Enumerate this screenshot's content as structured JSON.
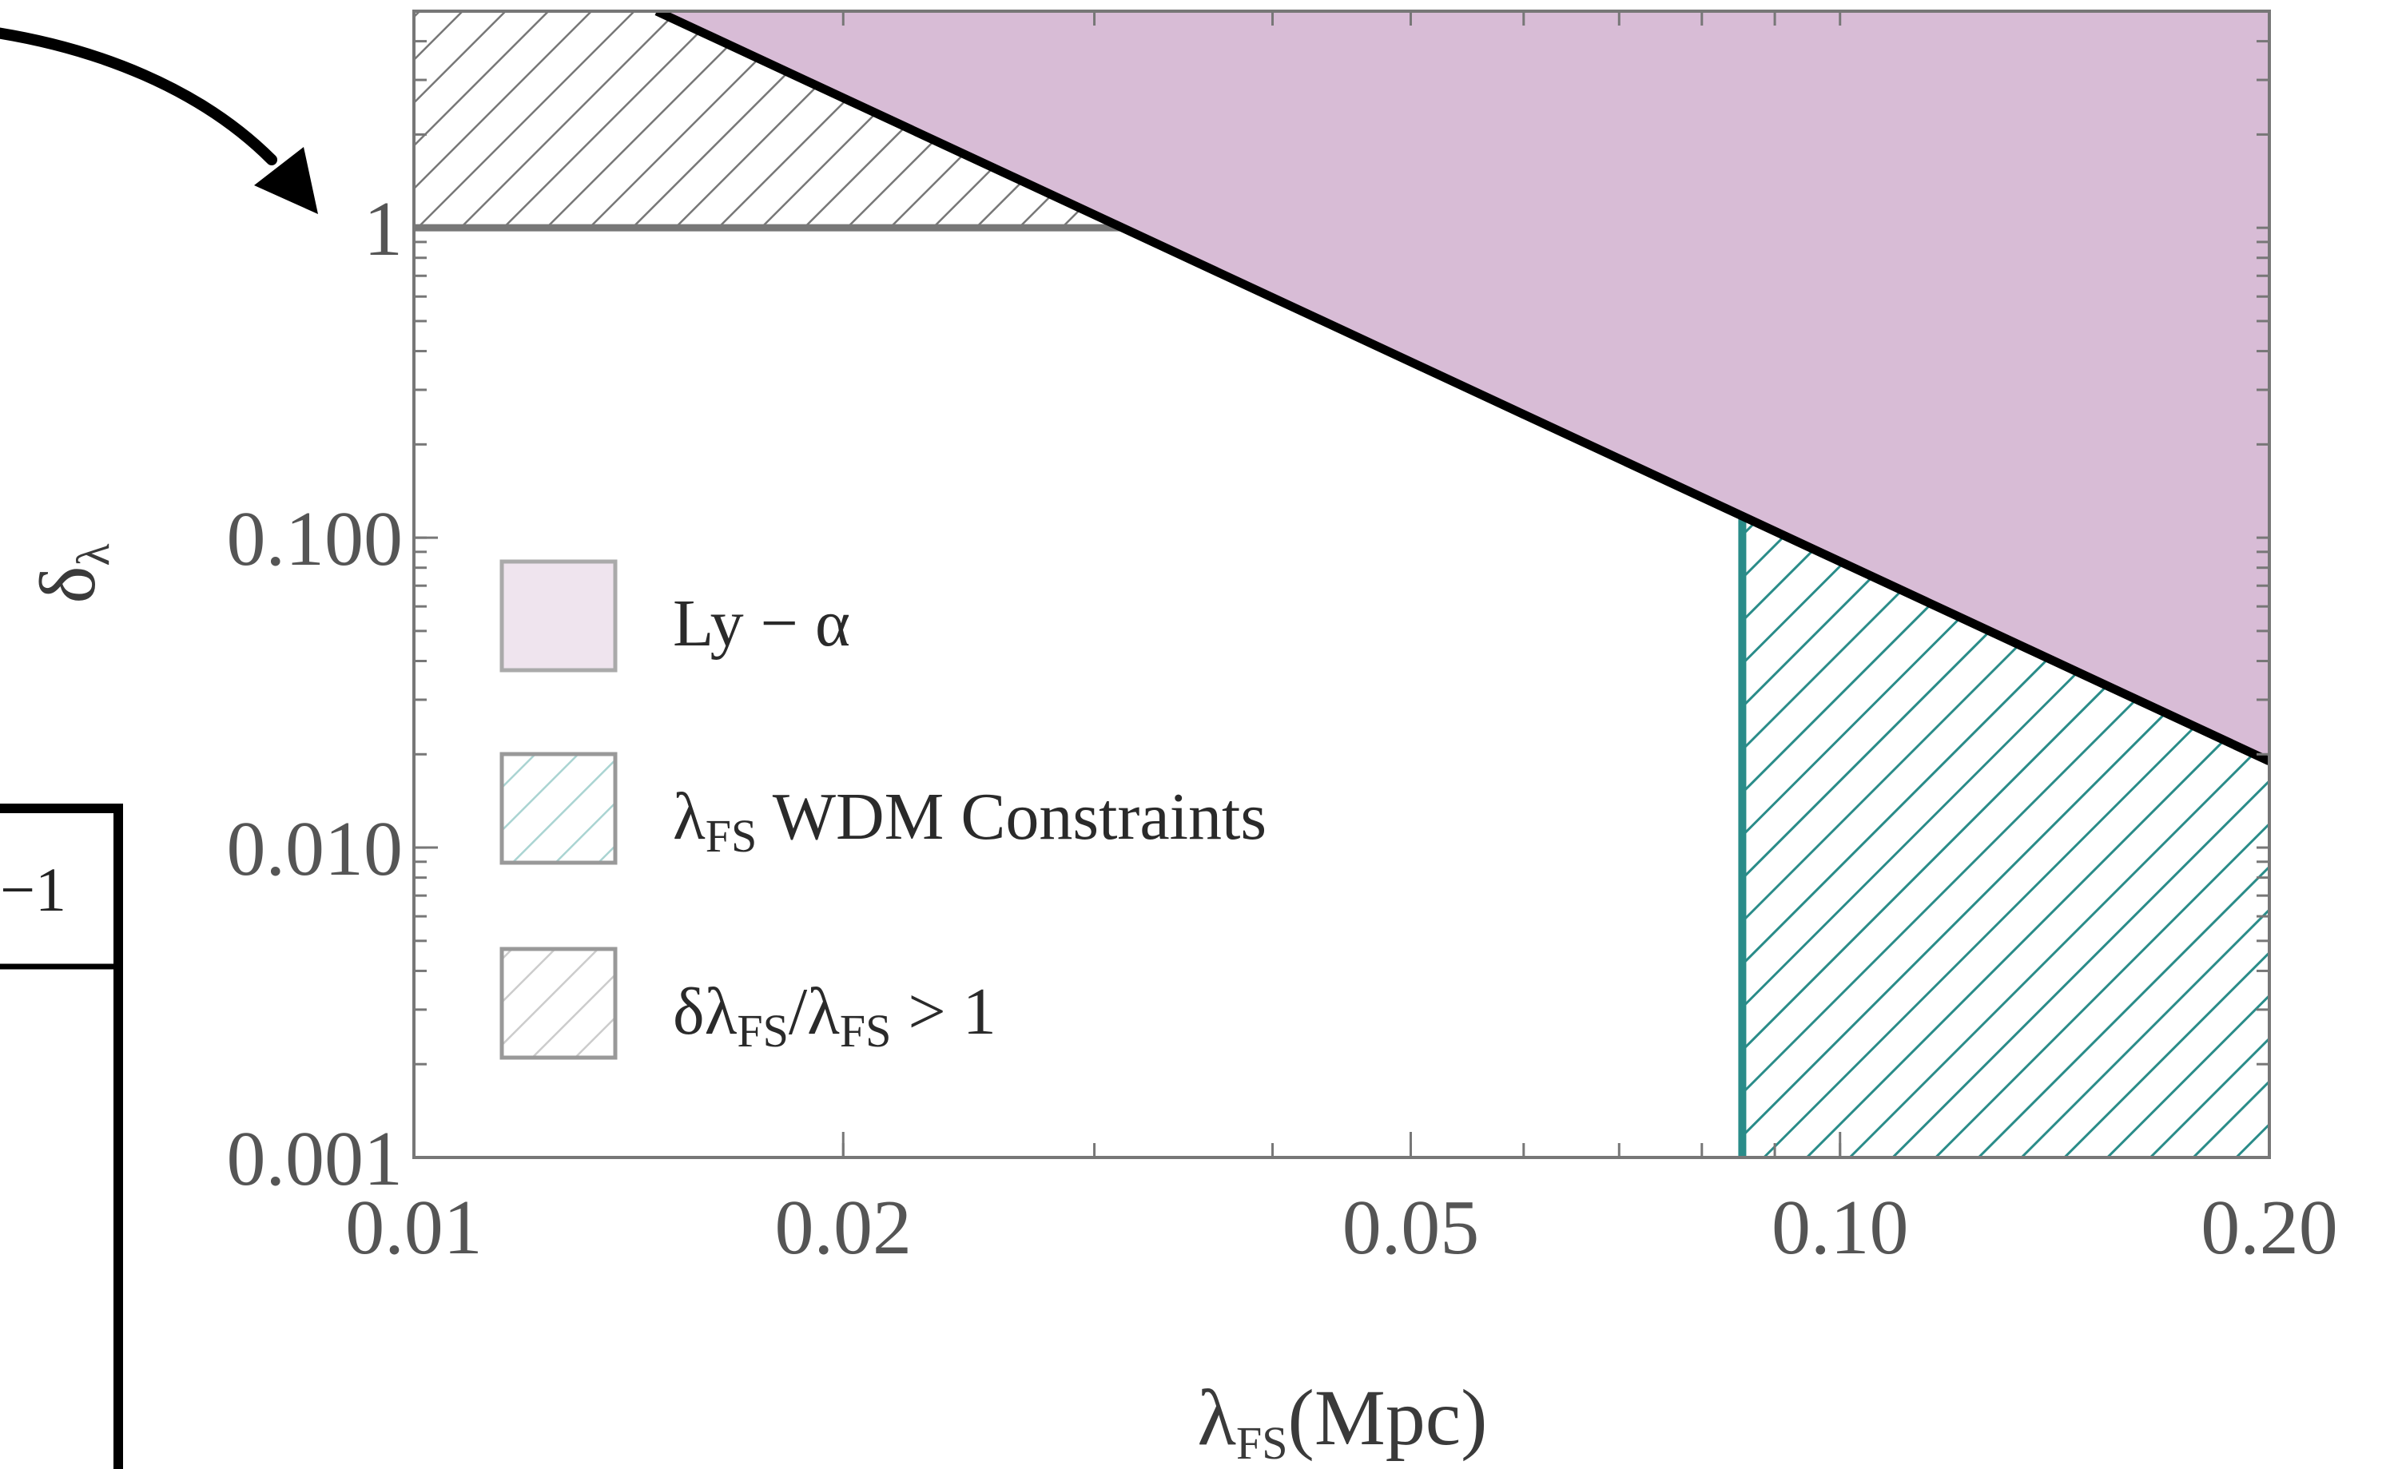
{
  "chart_data": {
    "type": "area",
    "title": "",
    "xlabel": {
      "symbol": "λ",
      "subscript": "FS",
      "unit": "(Mpc)"
    },
    "ylabel": {
      "symbol": "δ",
      "subscript": "λ"
    },
    "x_scale": "log",
    "y_scale": "log",
    "xlim": [
      0.01,
      0.2
    ],
    "ylim": [
      0.001,
      5.0
    ],
    "x_ticks": [
      {
        "value": 0.01,
        "label": "0.01"
      },
      {
        "value": 0.02,
        "label": "0.02"
      },
      {
        "value": 0.05,
        "label": "0.05"
      },
      {
        "value": 0.1,
        "label": "0.10"
      },
      {
        "value": 0.2,
        "label": "0.20"
      }
    ],
    "y_ticks": [
      {
        "value": 0.001,
        "label": "0.001"
      },
      {
        "value": 0.01,
        "label": "0.010"
      },
      {
        "value": 0.1,
        "label": "0.100"
      },
      {
        "value": 1,
        "label": "1"
      }
    ],
    "grid": false,
    "legend_position": "left",
    "series": [
      {
        "name": "Ly − α",
        "kind": "filled-region-above-line",
        "color": "#d8bcd6",
        "legend_color": "#efe4ee",
        "edge_color": "#bca7bb",
        "boundary_line": {
          "x": [
            0.0148,
            0.2
          ],
          "y": [
            5.0,
            0.019
          ]
        }
      },
      {
        "name": "λ_FS WDM Constraints",
        "legend": {
          "symbol": "λ",
          "subscript": "FS",
          "text": " WDM Constraints"
        },
        "kind": "hatched-region",
        "color": "#2a8c89",
        "legend_color": "#aad4d2",
        "x_min": 0.0854,
        "x_max": 0.2,
        "y_max": "below Ly − α boundary"
      },
      {
        "name": "δλ_FS/λ_FS > 1",
        "legend": {
          "parts": [
            "δλ",
            "FS",
            "/λ",
            "FS",
            " > 1"
          ]
        },
        "kind": "hatched-region",
        "color": "#777777",
        "legend_color": "#cccccc",
        "y_min": 1,
        "y_max": 5.0,
        "x_max": "left of Ly − α boundary"
      }
    ],
    "annotations": [
      {
        "type": "arrow",
        "color": "#000000",
        "points_to_y": 1
      },
      {
        "type": "partial-text",
        "text": "−1"
      }
    ]
  }
}
